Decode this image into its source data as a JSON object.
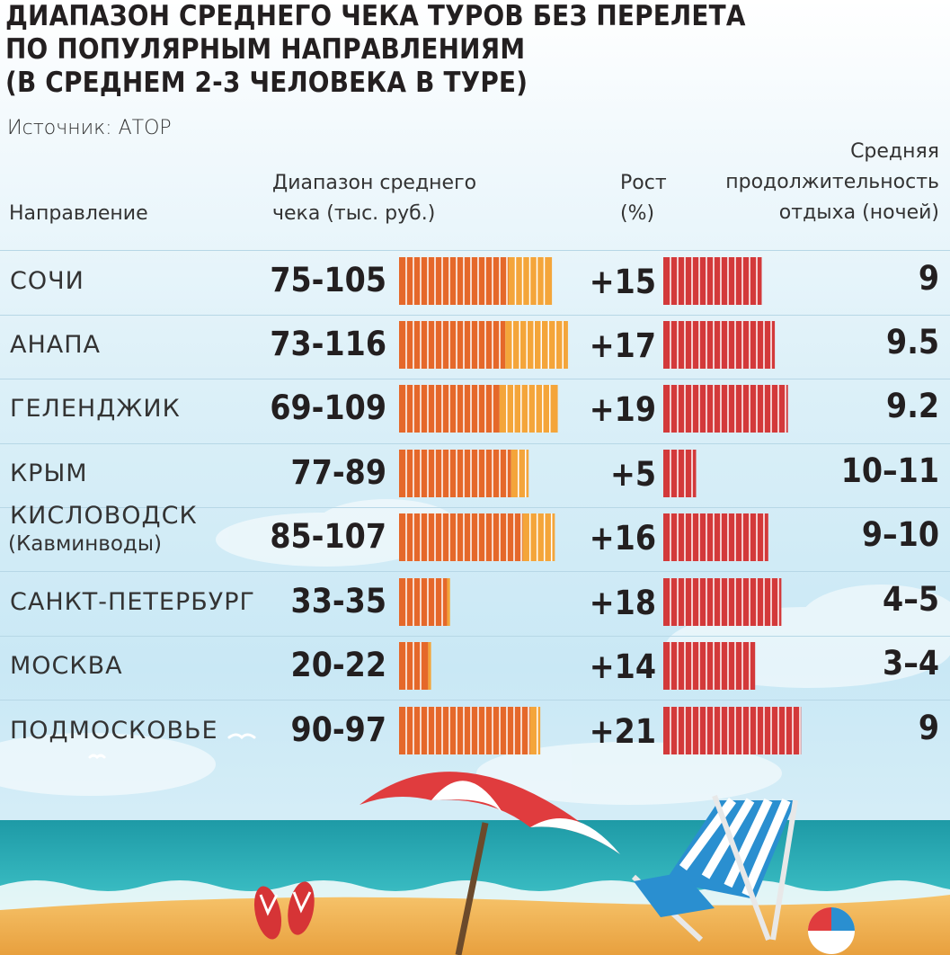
{
  "title_lines": [
    "ДИАПАЗОН СРЕДНЕГО ЧЕКА ТУРОВ БЕЗ ПЕРЕЛЕТА",
    "ПО ПОПУЛЯРНЫМ НАПРАВЛЕНИЯМ",
    "(В СРЕДНЕМ 2-3 ЧЕЛОВЕКА В ТУРЕ)"
  ],
  "source": "Источник: АТОР",
  "headers": {
    "destination": "Направление",
    "range_line1": "Диапазон среднего",
    "range_line2": "чека (тыс. руб.)",
    "growth_line1": "Рост",
    "growth_line2": "(%)",
    "nights_line1": "Средняя",
    "nights_line2": "продолжительность",
    "nights_line3": "отдыха (ночей)"
  },
  "colors": {
    "range_min": "#e5682a",
    "range_max": "#f4a53a",
    "growth": "#d3393a",
    "stripe": "#ffffff"
  },
  "chart_data": {
    "type": "table",
    "columns": [
      "Направление",
      "Диапазон среднего чека (тыс. руб.)",
      "Рост (%)",
      "Средняя продолжительность отдыха (ночей)"
    ],
    "rows": [
      {
        "destination": "СОЧИ",
        "destination_sub": "",
        "range": "75-105",
        "min": 75,
        "max": 105,
        "growth": "+15",
        "growth_value": 15,
        "nights": "9"
      },
      {
        "destination": "АНАПА",
        "destination_sub": "",
        "range": "73-116",
        "min": 73,
        "max": 116,
        "growth": "+17",
        "growth_value": 17,
        "nights": "9.5"
      },
      {
        "destination": "ГЕЛЕНДЖИК",
        "destination_sub": "",
        "range": "69-109",
        "min": 69,
        "max": 109,
        "growth": "+19",
        "growth_value": 19,
        "nights": "9.2"
      },
      {
        "destination": "КРЫМ",
        "destination_sub": "",
        "range": "77-89",
        "min": 77,
        "max": 89,
        "growth": "+5",
        "growth_value": 5,
        "nights": "10–11"
      },
      {
        "destination": "КИСЛОВОДСК",
        "destination_sub": "(Кавминводы)",
        "range": "85-107",
        "min": 85,
        "max": 107,
        "growth": "+16",
        "growth_value": 16,
        "nights": "9–10"
      },
      {
        "destination": "САНКТ-ПЕТЕРБУРГ",
        "destination_sub": "",
        "range": "33-35",
        "min": 33,
        "max": 35,
        "growth": "+18",
        "growth_value": 18,
        "nights": "4–5"
      },
      {
        "destination": "МОСКВА",
        "destination_sub": "",
        "range": "20-22",
        "min": 20,
        "max": 22,
        "growth": "+14",
        "growth_value": 14,
        "nights": "3–4"
      },
      {
        "destination": "ПОДМОСКОВЬЕ",
        "destination_sub": "",
        "range": "90-97",
        "min": 90,
        "max": 97,
        "growth": "+21",
        "growth_value": 21,
        "nights": "9"
      }
    ]
  }
}
